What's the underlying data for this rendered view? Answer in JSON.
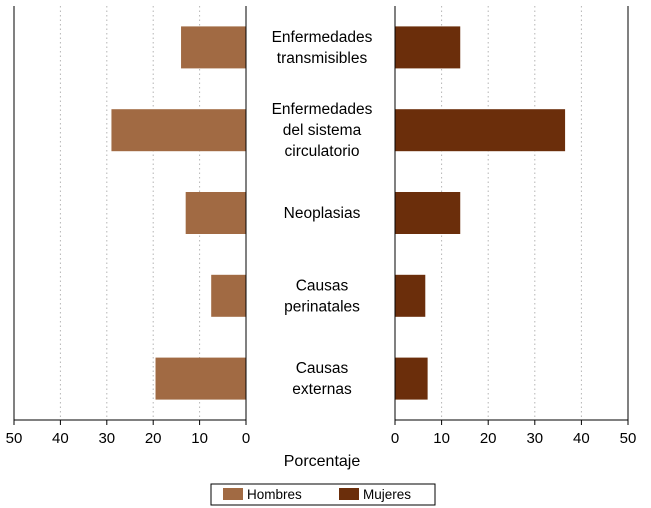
{
  "chart_data": {
    "type": "bar",
    "orientation": "horizontal",
    "layout": "back-to-back",
    "categories": [
      [
        "Enfermedades",
        "transmisibles"
      ],
      [
        "Enfermedades",
        "del sistema",
        "circulatorio"
      ],
      [
        "Neoplasias"
      ],
      [
        "Causas",
        "perinatales"
      ],
      [
        "Causas",
        "externas"
      ]
    ],
    "series": [
      {
        "name": "Hombres",
        "values": [
          14,
          29,
          13,
          7.5,
          19.5
        ],
        "color": "#a16a43",
        "side": "left"
      },
      {
        "name": "Mujeres",
        "values": [
          14,
          36.5,
          14,
          6.5,
          7
        ],
        "color": "#6b2e0b",
        "side": "right"
      }
    ],
    "xlabel": "Porcentaje",
    "xlim": [
      0,
      50
    ],
    "left_ticks": [
      "50",
      "40",
      "30",
      "20",
      "10",
      "0"
    ],
    "right_ticks": [
      "0",
      "10",
      "20",
      "30",
      "40",
      "50"
    ],
    "grid": "vertical dotted",
    "legend_position": "bottom-center"
  }
}
